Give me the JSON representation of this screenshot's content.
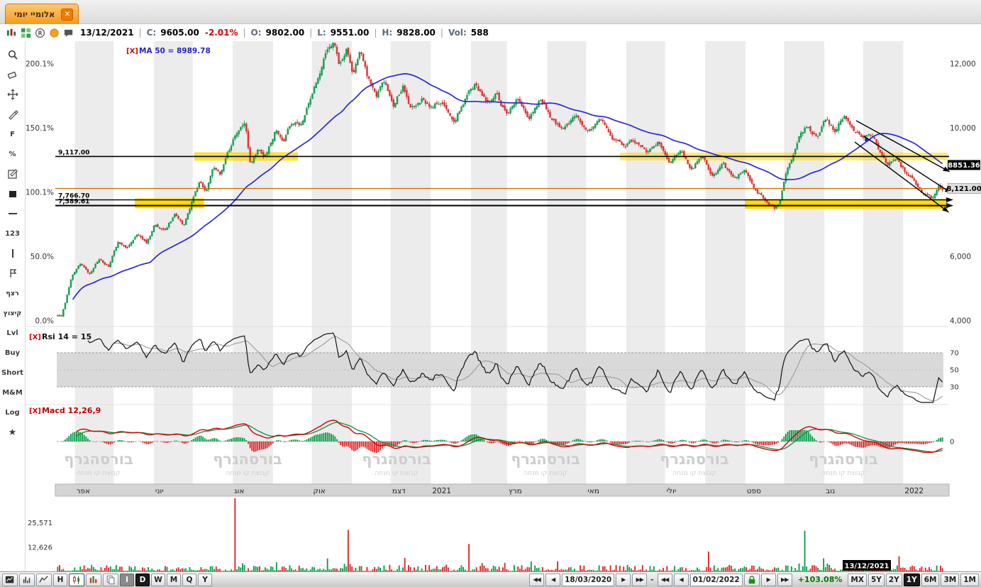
{
  "window": {
    "tab_title": "אלומיי יומי",
    "close_glyph": "✕"
  },
  "quote_bar": {
    "date": "13/12/2021",
    "separator": "|",
    "icons": [
      {
        "name": "chart-type",
        "icon": "candlemini"
      },
      {
        "name": "layout-grid",
        "icon": "gridgreen"
      },
      {
        "name": "registered",
        "icon": "registered"
      },
      {
        "name": "alerts",
        "icon": "orangedot"
      },
      {
        "name": "comments",
        "icon": "comment"
      }
    ],
    "fields": [
      {
        "label": "C:",
        "value": "9605.00",
        "change": "-2.01%"
      },
      {
        "label": "O:",
        "value": "9802.00"
      },
      {
        "label": "L:",
        "value": "9551.00"
      },
      {
        "label": "H:",
        "value": "9828.00"
      },
      {
        "label": "Vol:",
        "value": "588"
      }
    ]
  },
  "left_toolbar": {
    "items": [
      {
        "name": "zoom-tool",
        "icon": "magnifier"
      },
      {
        "name": "eraser-tool",
        "icon": "eraser"
      },
      {
        "name": "pan-tool",
        "icon": "move"
      },
      {
        "name": "pencil-tool",
        "icon": "pencil"
      },
      {
        "name": "fib-tool",
        "label": "F"
      },
      {
        "name": "percent-tool",
        "label": "%"
      },
      {
        "name": "annotation-tool",
        "icon": "note"
      },
      {
        "name": "fill-tool",
        "icon": "square"
      },
      {
        "name": "horizontal-line-tool",
        "icon": "hline"
      },
      {
        "name": "numbers-tool",
        "label": "123"
      },
      {
        "name": "vertical-line-tool",
        "icon": "vline"
      },
      {
        "name": "flag-tool",
        "icon": "flag"
      },
      {
        "name": "ratzef-tool",
        "label": "רצף",
        "heb": true
      },
      {
        "name": "kitzutz-tool",
        "label": "קיצוץ",
        "heb": true
      },
      {
        "name": "level-tool",
        "label": "Lvl"
      },
      {
        "name": "buy-tool",
        "label": "Buy"
      },
      {
        "name": "short-tool",
        "label": "Short"
      },
      {
        "name": "mm-tool",
        "label": "M&M"
      },
      {
        "name": "log-tool",
        "label": "Log"
      },
      {
        "name": "favorites-tool",
        "label": "★"
      }
    ]
  },
  "watermark": {
    "title": "בורסהגרף",
    "subtitle": "קבוצת קו מנחה"
  },
  "chart_data": {
    "type": "candlestick",
    "title": "אלומיי יומי",
    "interval": "daily",
    "visible_range": {
      "start": "18/03/2020",
      "end": "01/02/2022"
    },
    "candles_count": 470,
    "ohlc_current": {
      "date": "13/12/2021",
      "close": 9605.0,
      "change_pct": -2.01,
      "open": 9802.0,
      "low": 9551.0,
      "high": 9828.0,
      "volume": 588
    },
    "overlay_labels": {
      "prefix": "[X]",
      "ma": "MA 50 = 8989.78",
      "rsi": "Rsi 14 = 15",
      "macd": "Macd 12,26,9"
    },
    "price_axis": [
      {
        "value": 12000,
        "label": "12,000"
      },
      {
        "value": 10000,
        "label": "10,000"
      },
      {
        "value": 6000,
        "label": "6,000"
      },
      {
        "value": 4000,
        "label": "4,000"
      }
    ],
    "percent_axis": [
      {
        "label": "200.1%",
        "value": 12000
      },
      {
        "label": "150.1%",
        "value": 10000
      },
      {
        "label": "100.1%",
        "value": 8000
      },
      {
        "label": "50.0%",
        "value": 6000
      },
      {
        "label": "0.0%",
        "value": 4000
      }
    ],
    "rsi_axis": [
      "70",
      "50",
      "30"
    ],
    "macd_zero_label": "0",
    "volume_axis": [
      {
        "label": "25,571",
        "value": 25571
      },
      {
        "label": "12,626",
        "value": 12626
      }
    ],
    "badges": {
      "last": "8851.36",
      "last_value": 8851.36,
      "current": "8,121.00",
      "current_value": 8121
    },
    "ma_dot": {
      "t": 0.9136,
      "p": 9636
    },
    "crosshair": {
      "date": "13/12/2021",
      "t": 0.9136
    },
    "levels": [
      {
        "label": "9,117.00",
        "value": 9117.0,
        "color": "#000000",
        "width": 1.6,
        "arrow": false
      },
      {
        "label": "",
        "value": 8121.0,
        "color": "#cc6a00",
        "width": 1.2,
        "arrow": false
      },
      {
        "label": "7,766.70",
        "value": 7766.7,
        "color": "#000000",
        "width": 1.4,
        "arrow": true
      },
      {
        "label": "7,589.61",
        "value": 7589.61,
        "color": "#000000",
        "width": 2.0,
        "arrow": true
      }
    ],
    "highlight_zones": [
      {
        "t0": 0.155,
        "t1": 0.272,
        "value": 9117,
        "thickness": 12,
        "color": "#ffd700",
        "opacity": 0.75
      },
      {
        "t0": 0.635,
        "t1": 1.005,
        "value": 9117,
        "thickness": 11,
        "color": "#ffd700",
        "opacity": 0.55
      },
      {
        "t0": 0.088,
        "t1": 0.166,
        "value": 7660,
        "thickness": 14,
        "color": "#ffd700",
        "opacity": 0.95
      },
      {
        "t0": 0.776,
        "t1": 1.005,
        "value": 7640,
        "thickness": 14,
        "color": "#ffd700",
        "opacity": 0.95
      }
    ],
    "trend_lines": [
      {
        "t0": 0.9016,
        "p0": 10232,
        "t1": 1.007,
        "p1": 8641
      },
      {
        "t0": 0.9104,
        "p0": 9746,
        "t1": 1.009,
        "p1": 7978
      },
      {
        "t0": 0.9,
        "p0": 9569,
        "t1": 1.006,
        "p1": 7381
      }
    ],
    "month_stripes": [
      [
        0.0204,
        0.0642
      ],
      [
        0.1095,
        0.1533
      ],
      [
        0.1985,
        0.2438
      ],
      [
        0.2876,
        0.3328
      ],
      [
        0.3766,
        0.4219
      ],
      [
        0.4672,
        0.508
      ],
      [
        0.5533,
        0.5971
      ],
      [
        0.6423,
        0.6861
      ],
      [
        0.7314,
        0.7766
      ],
      [
        0.8204,
        0.8657
      ],
      [
        0.9095,
        0.9547
      ]
    ],
    "x_axis": [
      [
        "אפר",
        0.0204
      ],
      [
        "יוני",
        0.1095
      ],
      [
        "אוג",
        0.1985
      ],
      [
        "אוק",
        0.2876
      ],
      [
        "דצמ",
        0.3766
      ],
      [
        "2021",
        0.4219
      ],
      [
        "מרץ",
        0.508
      ],
      [
        "מאי",
        0.5971
      ],
      [
        "יולי",
        0.6861
      ],
      [
        "ספט",
        0.7766
      ],
      [
        "נוב",
        0.8657
      ],
      [
        "2022",
        0.9547
      ]
    ],
    "volume_spikes": [
      {
        "t": 0.2,
        "v": 39000,
        "color": "red"
      },
      {
        "t": 0.328,
        "v": 22000,
        "color": "red"
      },
      {
        "t": 0.464,
        "v": 14500,
        "color": "red"
      },
      {
        "t": 0.736,
        "v": 10500,
        "color": "red"
      },
      {
        "t": 0.844,
        "v": 21500,
        "color": "green"
      },
      {
        "t": 0.952,
        "v": 8000,
        "color": "red"
      }
    ],
    "price_path": [
      [
        0.0,
        4150
      ],
      [
        0.004,
        4090
      ],
      [
        0.01,
        4710
      ],
      [
        0.016,
        5370
      ],
      [
        0.026,
        5770
      ],
      [
        0.036,
        5480
      ],
      [
        0.048,
        6030
      ],
      [
        0.058,
        5700
      ],
      [
        0.068,
        6480
      ],
      [
        0.078,
        6210
      ],
      [
        0.09,
        6700
      ],
      [
        0.1,
        6370
      ],
      [
        0.11,
        6960
      ],
      [
        0.122,
        6700
      ],
      [
        0.132,
        7250
      ],
      [
        0.142,
        6960
      ],
      [
        0.15,
        7580
      ],
      [
        0.16,
        8350
      ],
      [
        0.168,
        8020
      ],
      [
        0.176,
        8690
      ],
      [
        0.184,
        8460
      ],
      [
        0.194,
        9240
      ],
      [
        0.204,
        9900
      ],
      [
        0.212,
        10230
      ],
      [
        0.218,
        8910
      ],
      [
        0.226,
        9460
      ],
      [
        0.236,
        9240
      ],
      [
        0.246,
        9900
      ],
      [
        0.256,
        9680
      ],
      [
        0.266,
        10230
      ],
      [
        0.276,
        10010
      ],
      [
        0.286,
        10790
      ],
      [
        0.296,
        11560
      ],
      [
        0.304,
        12330
      ],
      [
        0.312,
        12620
      ],
      [
        0.318,
        11890
      ],
      [
        0.326,
        12440
      ],
      [
        0.334,
        11670
      ],
      [
        0.342,
        12270
      ],
      [
        0.35,
        11560
      ],
      [
        0.36,
        10900
      ],
      [
        0.37,
        11340
      ],
      [
        0.38,
        10790
      ],
      [
        0.39,
        11380
      ],
      [
        0.4,
        10670
      ],
      [
        0.412,
        11010
      ],
      [
        0.424,
        10560
      ],
      [
        0.436,
        10900
      ],
      [
        0.448,
        10450
      ],
      [
        0.46,
        11010
      ],
      [
        0.472,
        11340
      ],
      [
        0.484,
        10790
      ],
      [
        0.496,
        11120
      ],
      [
        0.508,
        10450
      ],
      [
        0.52,
        10790
      ],
      [
        0.532,
        10230
      ],
      [
        0.546,
        10900
      ],
      [
        0.558,
        10340
      ],
      [
        0.572,
        9900
      ],
      [
        0.586,
        10230
      ],
      [
        0.598,
        9790
      ],
      [
        0.612,
        10120
      ],
      [
        0.626,
        9680
      ],
      [
        0.638,
        9350
      ],
      [
        0.652,
        9570
      ],
      [
        0.666,
        9130
      ],
      [
        0.678,
        9460
      ],
      [
        0.692,
        9020
      ],
      [
        0.704,
        9350
      ],
      [
        0.716,
        8800
      ],
      [
        0.728,
        9130
      ],
      [
        0.74,
        8580
      ],
      [
        0.752,
        8800
      ],
      [
        0.764,
        8350
      ],
      [
        0.776,
        8580
      ],
      [
        0.788,
        8130
      ],
      [
        0.8,
        7800
      ],
      [
        0.81,
        7540
      ],
      [
        0.816,
        7690
      ],
      [
        0.822,
        8350
      ],
      [
        0.83,
        9020
      ],
      [
        0.838,
        9680
      ],
      [
        0.848,
        10010
      ],
      [
        0.858,
        9750
      ],
      [
        0.868,
        10230
      ],
      [
        0.878,
        9900
      ],
      [
        0.888,
        10410
      ],
      [
        0.898,
        10060
      ],
      [
        0.908,
        9680
      ],
      [
        0.918,
        9900
      ],
      [
        0.928,
        9350
      ],
      [
        0.938,
        8910
      ],
      [
        0.948,
        9130
      ],
      [
        0.958,
        8690
      ],
      [
        0.968,
        8350
      ],
      [
        0.978,
        8020
      ],
      [
        0.988,
        7850
      ],
      [
        0.996,
        8200
      ],
      [
        1.0,
        8070
      ]
    ]
  },
  "bottom_toolbar": {
    "left": [
      {
        "name": "chart-settings-button",
        "icon": "blackchart"
      },
      {
        "name": "indicators-button",
        "icon": "bars"
      },
      {
        "name": "line-style-button",
        "icon": "linechart"
      },
      {
        "name": "hour-interval-button",
        "label": "H"
      },
      {
        "name": "candle-style-button",
        "icon": "candles",
        "style": "candsel"
      },
      {
        "name": "volume-bars-button",
        "icon": "colorbars"
      },
      {
        "name": "duplicate-button",
        "icon": "page"
      },
      {
        "name": "intraday-interval-button",
        "label": "I",
        "style": "gray"
      },
      {
        "name": "daily-interval-button",
        "label": "D",
        "style": "black"
      },
      {
        "name": "weekly-interval-button",
        "label": "W"
      },
      {
        "name": "monthly-interval-button",
        "label": "M"
      },
      {
        "name": "quarterly-interval-button",
        "label": "Q"
      },
      {
        "name": "yearly-interval-button",
        "label": "Y"
      }
    ],
    "right": [
      {
        "name": "range-start-first-button",
        "label": "◀◀",
        "style": "nav"
      },
      {
        "name": "range-start-prev-button",
        "label": "◀",
        "style": "nav"
      },
      {
        "name": "range-start-date",
        "label": "18/03/2020",
        "style": "date"
      },
      {
        "name": "range-start-next-button",
        "label": "▶",
        "style": "nav"
      },
      {
        "name": "range-start-last-button",
        "label": "▶▶",
        "style": "nav"
      },
      {
        "name": "range-separator",
        "label": "-",
        "style": "dash"
      },
      {
        "name": "range-end-first-button",
        "label": "◀◀",
        "style": "nav"
      },
      {
        "name": "range-end-prev-button",
        "label": "◀",
        "style": "nav"
      },
      {
        "name": "range-end-date",
        "label": "01/02/2022",
        "style": "date"
      },
      {
        "name": "lock-range-button",
        "icon": "lock"
      },
      {
        "name": "range-end-next-button",
        "label": "▶",
        "style": "nav"
      },
      {
        "name": "range-end-last-button",
        "label": "▶▶",
        "style": "nav"
      },
      {
        "name": "total-change-percent",
        "label": "+103.08%",
        "style": "pct"
      },
      {
        "name": "range-mx-button",
        "label": "MX"
      },
      {
        "name": "range-5y-button",
        "label": "5Y"
      },
      {
        "name": "range-2y-button",
        "label": "2Y"
      },
      {
        "name": "range-1y-button",
        "label": "1Y",
        "style": "black"
      },
      {
        "name": "range-6m-button",
        "label": "6M"
      },
      {
        "name": "range-3m-button",
        "label": "3M"
      },
      {
        "name": "range-1m-button",
        "label": "1M"
      }
    ]
  }
}
